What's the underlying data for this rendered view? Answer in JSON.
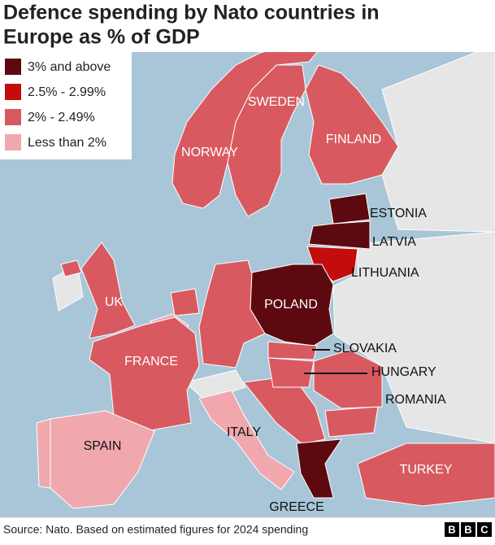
{
  "header": {
    "title": [
      "Defence spending by Nato countries in",
      "Europe as % of GDP"
    ]
  },
  "legend": [
    {
      "label": "3% and above",
      "color": "#5c0a10"
    },
    {
      "label": "2.5% - 2.99%",
      "color": "#c40c0c"
    },
    {
      "label": "2% - 2.49%",
      "color": "#d85a60"
    },
    {
      "label": "Less than 2%",
      "color": "#f0a8ae"
    }
  ],
  "countries": [
    {
      "name": "SWEDEN",
      "color": "#d85a60"
    },
    {
      "name": "NORWAY",
      "color": "#d85a60"
    },
    {
      "name": "FINLAND",
      "color": "#d85a60"
    },
    {
      "name": "ESTONIA",
      "color": "#5c0a10"
    },
    {
      "name": "LATVIA",
      "color": "#5c0a10"
    },
    {
      "name": "LITHUANIA",
      "color": "#c40c0c"
    },
    {
      "name": "POLAND",
      "color": "#5c0a10"
    },
    {
      "name": "UK",
      "color": "#d85a60"
    },
    {
      "name": "FRANCE",
      "color": "#d85a60"
    },
    {
      "name": "SLOVAKIA",
      "color": "#d85a60"
    },
    {
      "name": "HUNGARY",
      "color": "#d85a60"
    },
    {
      "name": "ROMANIA",
      "color": "#d85a60"
    },
    {
      "name": "SPAIN",
      "color": "#f0a8ae"
    },
    {
      "name": "ITALY",
      "color": "#f0a8ae"
    },
    {
      "name": "TURKEY",
      "color": "#d85a60"
    },
    {
      "name": "GREECE",
      "color": "#5c0a10"
    }
  ],
  "footer": {
    "source": "Source: Nato. Based on estimated figures for 2024 spending",
    "logo": [
      "B",
      "B",
      "C"
    ]
  }
}
